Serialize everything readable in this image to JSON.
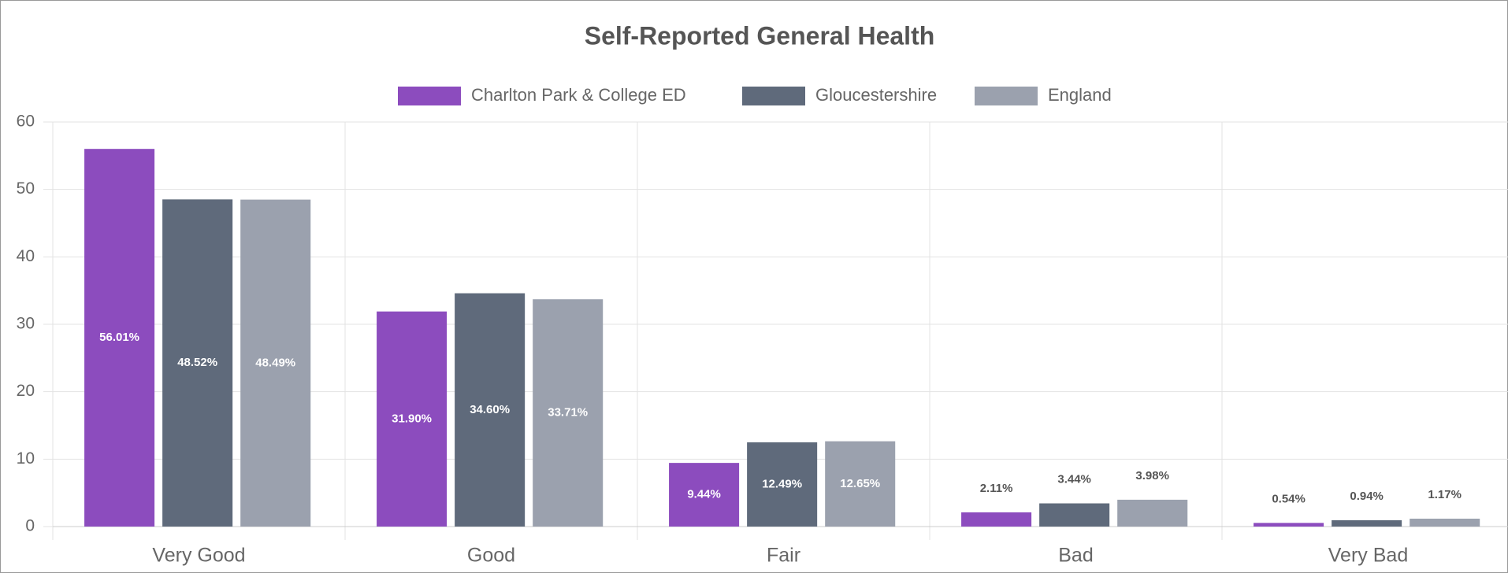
{
  "chart_data": {
    "type": "bar",
    "title": "Self-Reported General Health",
    "categories": [
      "Very Good",
      "Good",
      "Fair",
      "Bad",
      "Very Bad"
    ],
    "series": [
      {
        "name": "Charlton Park & College ED",
        "color": "#8c4cbe",
        "values": [
          56.01,
          31.9,
          9.44,
          2.11,
          0.54
        ],
        "value_labels": [
          "56.01%",
          "31.90%",
          "9.44%",
          "2.11%",
          "0.54%"
        ]
      },
      {
        "name": "Gloucestershire",
        "color": "#5f6a7b",
        "values": [
          48.52,
          34.6,
          12.49,
          3.44,
          0.94
        ],
        "value_labels": [
          "48.52%",
          "34.60%",
          "12.49%",
          "3.44%",
          "0.94%"
        ]
      },
      {
        "name": "England",
        "color": "#9ba1ae",
        "values": [
          48.49,
          33.71,
          12.65,
          3.98,
          1.17
        ],
        "value_labels": [
          "48.49%",
          "33.71%",
          "12.65%",
          "3.98%",
          "1.17%"
        ]
      }
    ],
    "ylim": [
      0,
      60
    ],
    "yticks": [
      0,
      10,
      20,
      30,
      40,
      50,
      60
    ],
    "grid": true,
    "legend": "top"
  }
}
